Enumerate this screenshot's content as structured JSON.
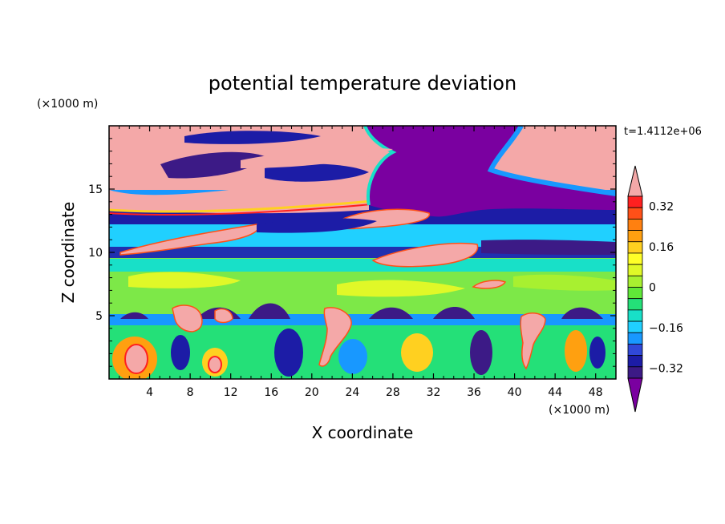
{
  "chart_data": {
    "type": "heatmap",
    "title": "potential temperature deviation",
    "time_label": "t=1.4112e+06",
    "xlabel": "X coordinate",
    "ylabel": "Z coordinate",
    "x_units": "(×1000 m)",
    "y_units": "(×1000 m)",
    "xlim": [
      0,
      50
    ],
    "ylim": [
      0,
      20
    ],
    "x_ticks": [
      "4",
      "8",
      "12",
      "16",
      "20",
      "24",
      "28",
      "32",
      "36",
      "40",
      "44",
      "48"
    ],
    "y_ticks": [
      "5",
      "10",
      "15"
    ],
    "colorbar": {
      "levels": [
        -0.4,
        -0.36,
        -0.32,
        -0.28,
        -0.24,
        -0.2,
        -0.16,
        -0.12,
        -0.08,
        -0.04,
        0,
        0.04,
        0.08,
        0.12,
        0.16,
        0.2,
        0.24,
        0.28,
        0.32,
        0.36,
        0.4
      ],
      "tick_labels": [
        "0.32",
        "0.16",
        "0",
        "−0.16",
        "−0.32"
      ],
      "tick_values": [
        0.32,
        0.16,
        0,
        -0.16,
        -0.32
      ],
      "colors": [
        "#7a00a0",
        "#3c1a86",
        "#1c1ca6",
        "#3048d8",
        "#1898ff",
        "#20d0ff",
        "#18e0c8",
        "#24e078",
        "#60e838",
        "#a8f030",
        "#e0f828",
        "#ffff28",
        "#ffd020",
        "#ffa010",
        "#ff8010",
        "#ff5018",
        "#ff2020",
        "#f4a8a8"
      ]
    },
    "field_values": {
      "stratosphere_background": 0.4,
      "central_upper_plume": -0.4,
      "mid_level_bands": -0.32,
      "lower_mixed_layer": 0.04
    }
  }
}
